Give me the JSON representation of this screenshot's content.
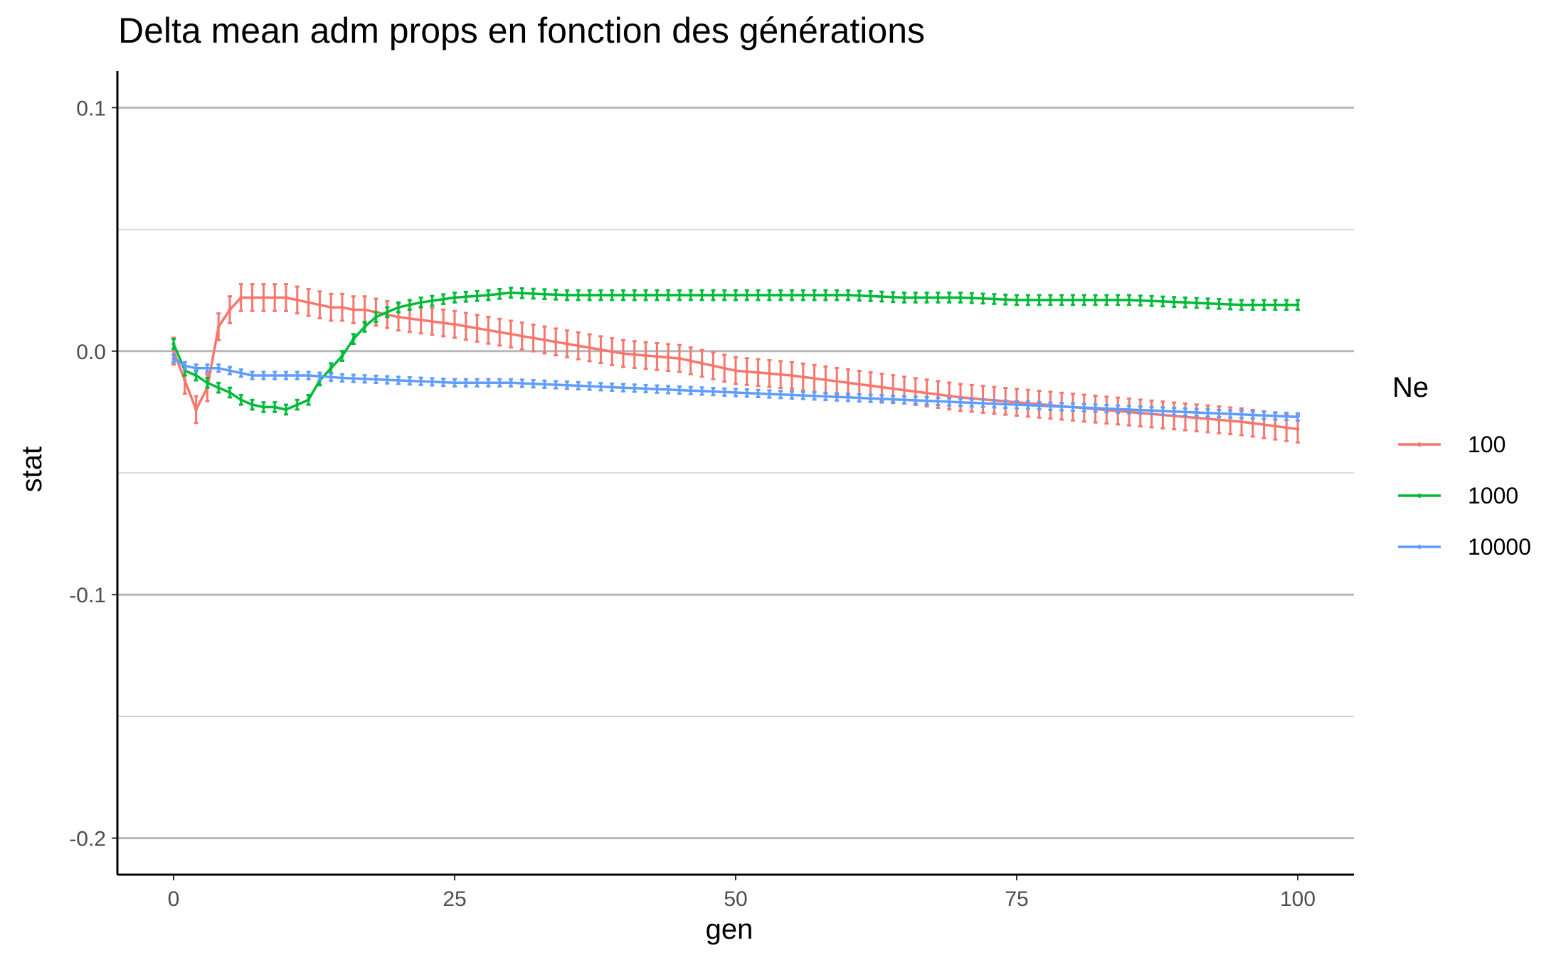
{
  "chart_data": {
    "type": "line",
    "title": "Delta mean adm props en fonction des générations",
    "xlabel": "gen",
    "ylabel": "stat",
    "xlim": [
      -5,
      105
    ],
    "ylim": [
      -0.215,
      0.115
    ],
    "x_ticks": [
      0,
      25,
      50,
      75,
      100
    ],
    "x_tick_labels": [
      "0",
      "25",
      "50",
      "75",
      "100"
    ],
    "y_ticks": [
      0.1,
      0.0,
      -0.1,
      -0.2
    ],
    "y_tick_labels": [
      "0.1",
      "0.0",
      "-0.1",
      "-0.2"
    ],
    "y_minor_gridlines": [
      0.05,
      -0.05,
      -0.15
    ],
    "grid": "horizontal",
    "legend": {
      "title": "Ne",
      "placement": "right"
    },
    "series": [
      {
        "name": "100",
        "color": "#F8766D",
        "errorbar_halfwidth": 0.0055,
        "x": [
          0,
          1,
          2,
          3,
          4,
          5,
          6,
          7,
          8,
          9,
          10,
          11,
          12,
          13,
          14,
          15,
          16,
          17,
          18,
          19,
          20,
          25,
          30,
          35,
          40,
          45,
          50,
          55,
          60,
          65,
          70,
          75,
          80,
          85,
          90,
          95,
          100
        ],
        "y": [
          0.0,
          -0.012,
          -0.024,
          -0.015,
          0.01,
          0.017,
          0.022,
          0.022,
          0.022,
          0.022,
          0.022,
          0.021,
          0.02,
          0.019,
          0.018,
          0.018,
          0.017,
          0.017,
          0.016,
          0.015,
          0.014,
          0.011,
          0.007,
          0.003,
          -0.001,
          -0.003,
          -0.008,
          -0.01,
          -0.013,
          -0.016,
          -0.019,
          -0.021,
          -0.023,
          -0.025,
          -0.027,
          -0.029,
          -0.032
        ]
      },
      {
        "name": "1000",
        "color": "#00BA38",
        "errorbar_halfwidth": 0.002,
        "x": [
          0,
          1,
          2,
          3,
          4,
          5,
          6,
          7,
          8,
          9,
          10,
          11,
          12,
          13,
          14,
          15,
          16,
          17,
          18,
          19,
          20,
          22,
          25,
          28,
          30,
          35,
          40,
          45,
          50,
          55,
          60,
          65,
          70,
          75,
          80,
          85,
          90,
          95,
          100
        ],
        "y": [
          0.003,
          -0.008,
          -0.01,
          -0.013,
          -0.015,
          -0.017,
          -0.02,
          -0.022,
          -0.023,
          -0.023,
          -0.024,
          -0.022,
          -0.02,
          -0.012,
          -0.007,
          -0.002,
          0.005,
          0.01,
          0.014,
          0.016,
          0.018,
          0.02,
          0.022,
          0.023,
          0.024,
          0.023,
          0.023,
          0.023,
          0.023,
          0.023,
          0.023,
          0.022,
          0.022,
          0.021,
          0.021,
          0.021,
          0.02,
          0.019,
          0.019
        ]
      },
      {
        "name": "10000",
        "color": "#619CFF",
        "errorbar_halfwidth": 0.0015,
        "x": [
          0,
          1,
          2,
          3,
          4,
          5,
          6,
          7,
          8,
          9,
          10,
          12,
          15,
          20,
          25,
          30,
          35,
          40,
          45,
          50,
          55,
          60,
          65,
          70,
          75,
          80,
          85,
          90,
          95,
          100
        ],
        "y": [
          -0.003,
          -0.006,
          -0.007,
          -0.007,
          -0.007,
          -0.008,
          -0.009,
          -0.01,
          -0.01,
          -0.01,
          -0.01,
          -0.01,
          -0.011,
          -0.012,
          -0.013,
          -0.013,
          -0.014,
          -0.015,
          -0.016,
          -0.017,
          -0.018,
          -0.019,
          -0.02,
          -0.021,
          -0.022,
          -0.023,
          -0.024,
          -0.025,
          -0.026,
          -0.027
        ]
      }
    ]
  }
}
